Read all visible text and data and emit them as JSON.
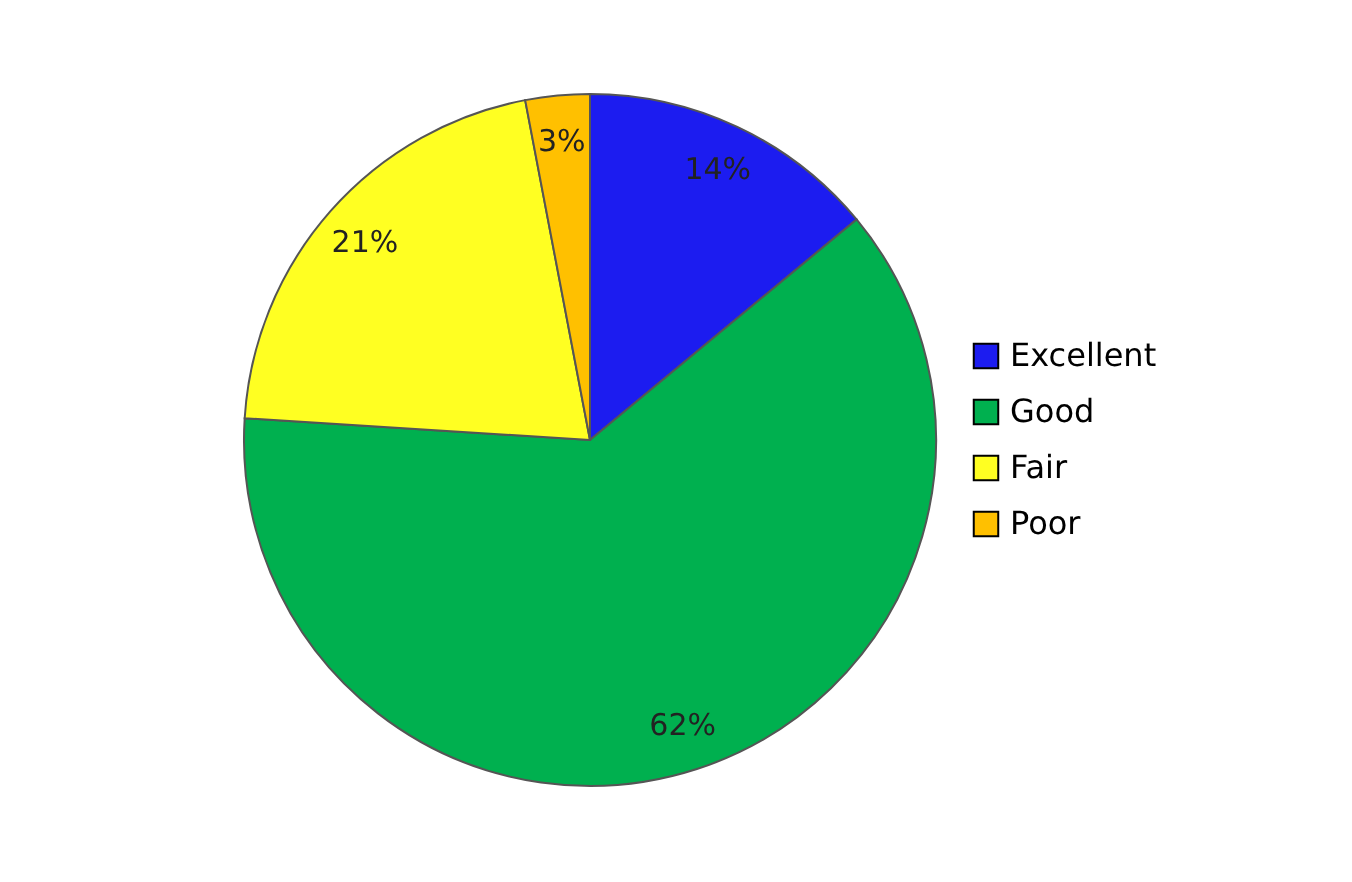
{
  "chart_data": {
    "type": "pie",
    "categories": [
      "Excellent",
      "Good",
      "Fair",
      "Poor"
    ],
    "values": [
      14,
      62,
      21,
      3
    ],
    "colors": [
      "#1c1cf0",
      "#00b04f",
      "#ffff22",
      "#ffc000"
    ],
    "value_labels": [
      "14%",
      "62%",
      "21%",
      "3%"
    ],
    "legend": "right"
  }
}
